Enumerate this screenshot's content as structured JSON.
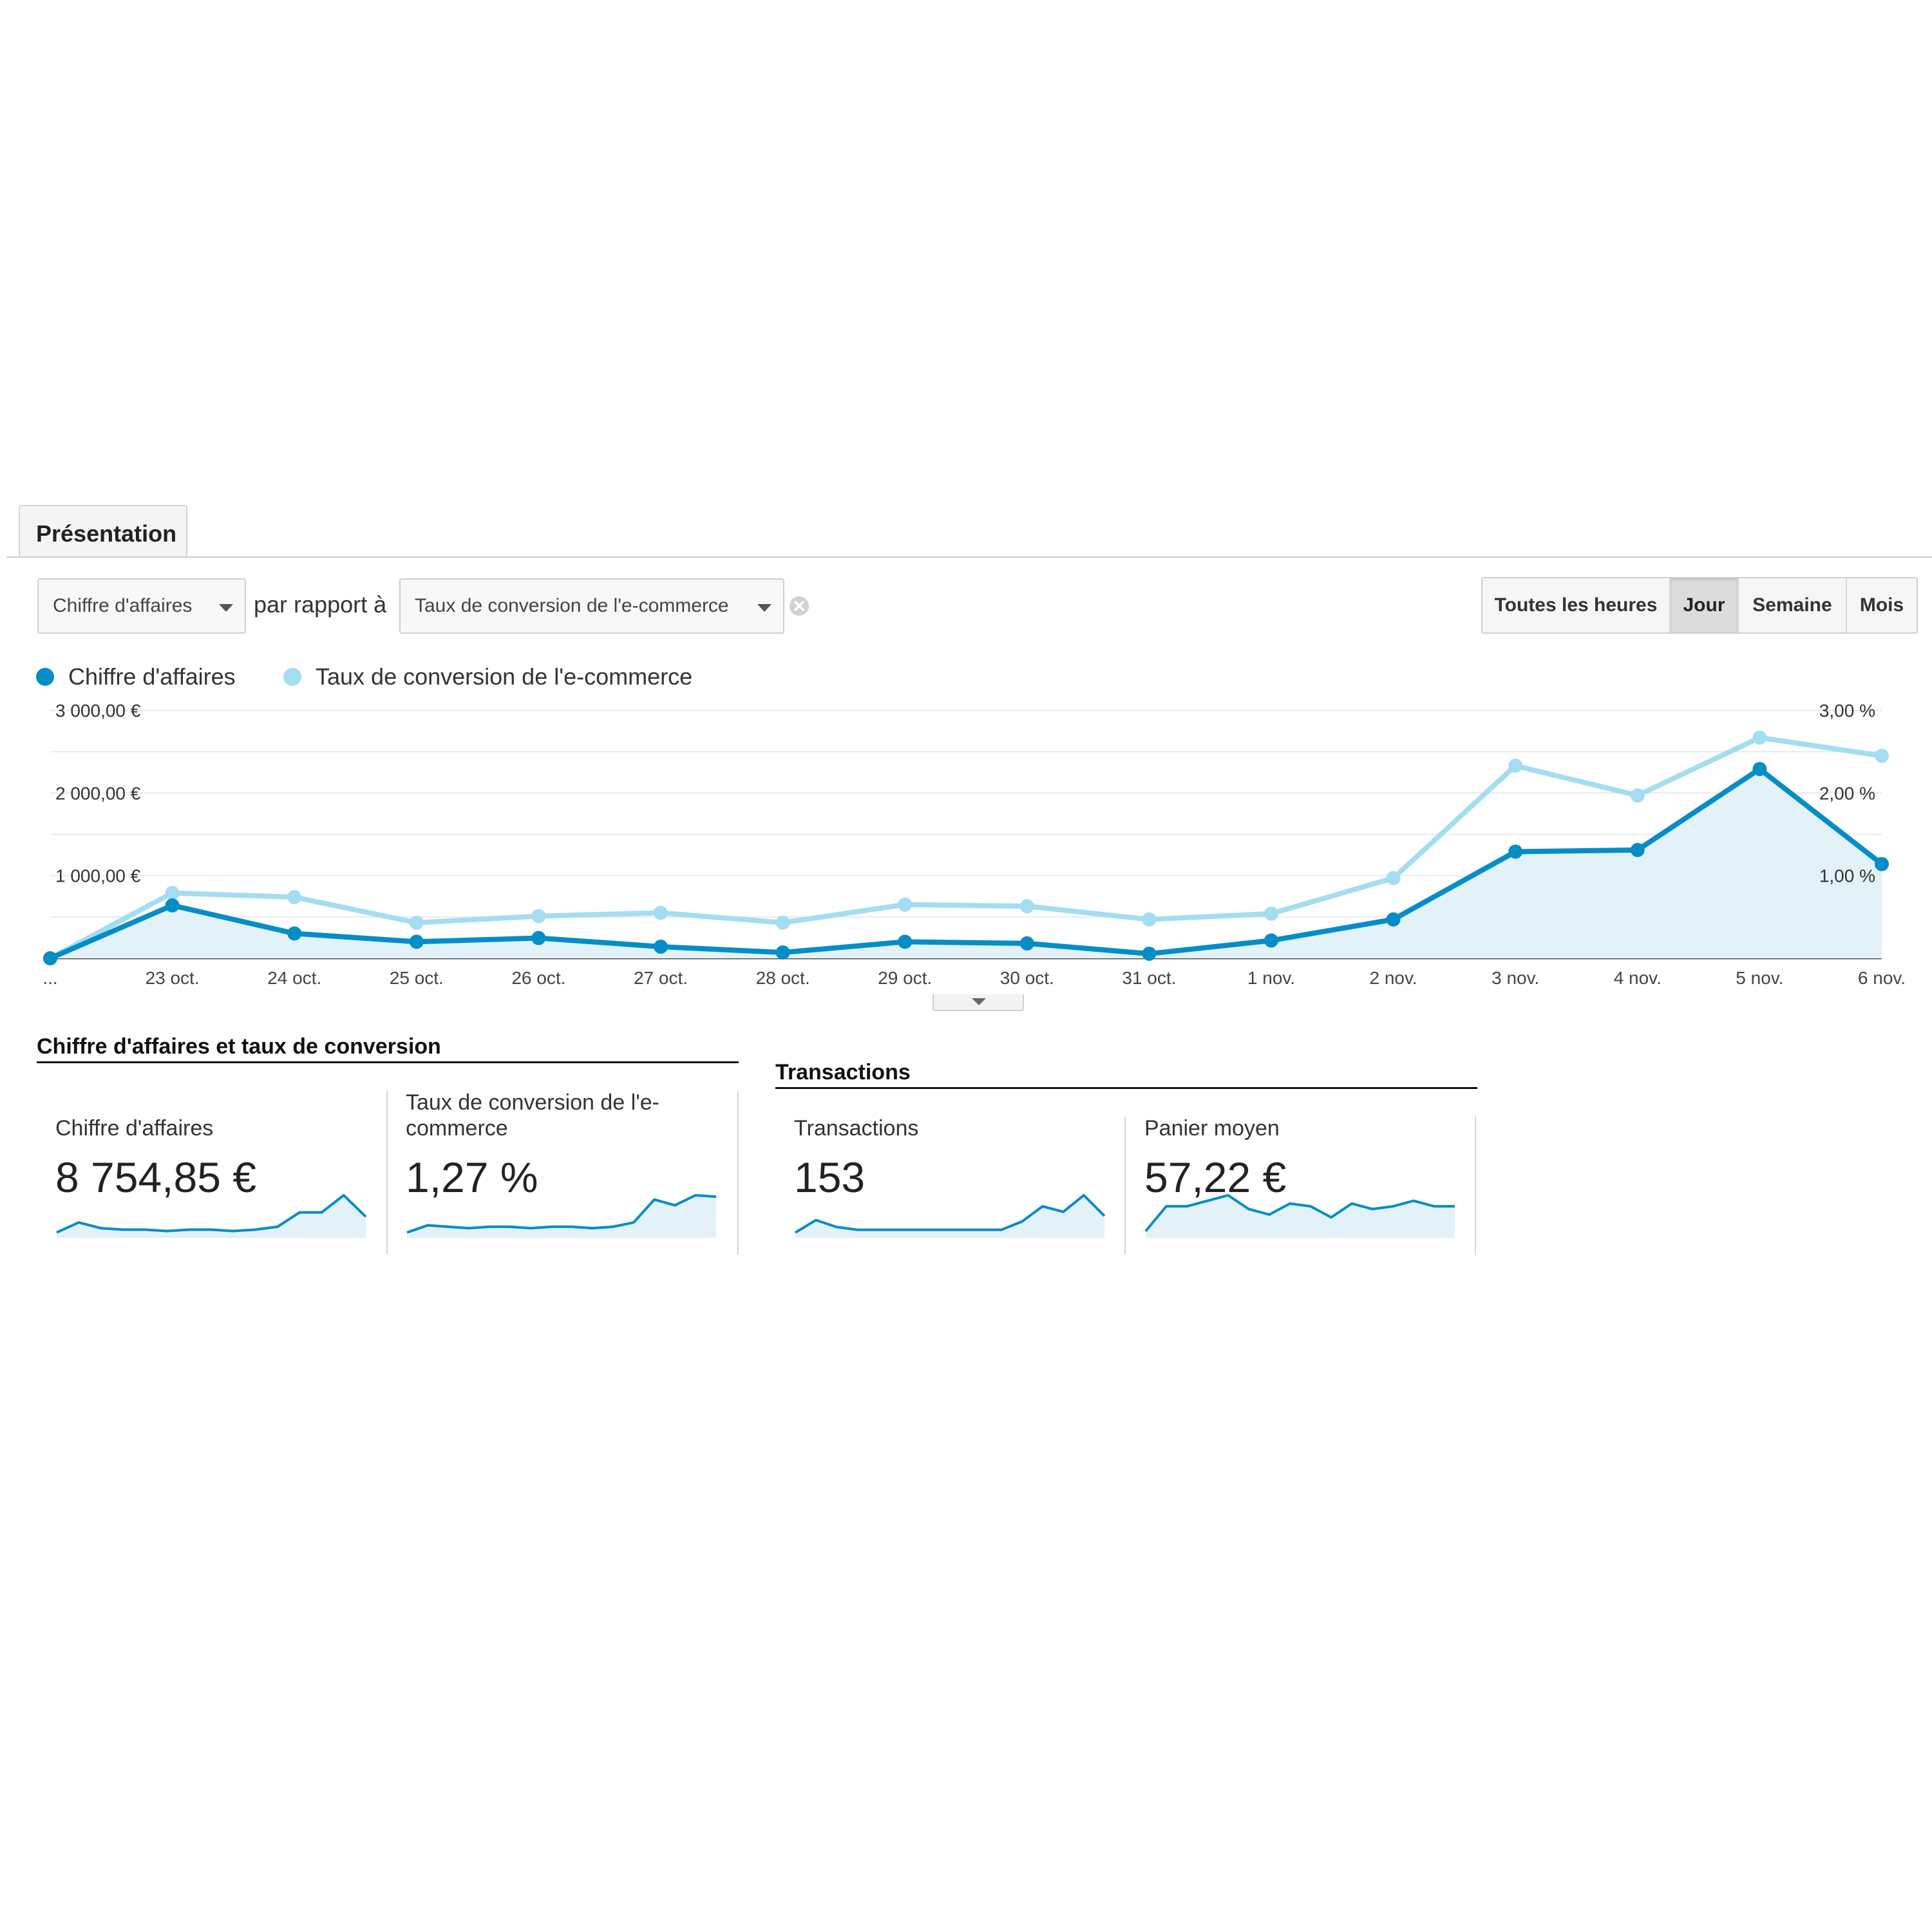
{
  "tabs": {
    "overview": "Présentation"
  },
  "controls": {
    "metric1": "Chiffre d'affaires",
    "versus": "par rapport à",
    "metric2": "Taux de conversion de l'e-commerce",
    "periods": [
      "Toutes les heures",
      "Jour",
      "Semaine",
      "Mois"
    ],
    "active_period": "Jour"
  },
  "colors": {
    "revenue": "#058dc7",
    "conversion": "#a4ddf2",
    "area": "#e3f1f8",
    "grid": "#ebebeb"
  },
  "chart_data": {
    "type": "line",
    "x": [
      "...",
      "23 oct.",
      "24 oct.",
      "25 oct.",
      "26 oct.",
      "27 oct.",
      "28 oct.",
      "29 oct.",
      "30 oct.",
      "31 oct.",
      "1 nov.",
      "2 nov.",
      "3 nov.",
      "4 nov.",
      "5 nov.",
      "6 nov."
    ],
    "series": [
      {
        "name": "Chiffre d'affaires",
        "axis": "left",
        "values": [
          0,
          640,
          300,
          200,
          245,
          140,
          70,
          200,
          180,
          55,
          215,
          470,
          1290,
          1310,
          2290,
          1140
        ]
      },
      {
        "name": "Taux de conversion de l'e-commerce",
        "axis": "right",
        "values": [
          0,
          0.79,
          0.74,
          0.43,
          0.51,
          0.55,
          0.43,
          0.65,
          0.63,
          0.47,
          0.54,
          0.97,
          2.33,
          1.97,
          2.67,
          2.45
        ]
      }
    ],
    "y_left": {
      "ticks": [
        "3 000,00 €",
        "2 000,00 €",
        "1 000,00 €"
      ],
      "range": [
        0,
        3000
      ]
    },
    "y_right": {
      "ticks": [
        "3,00 %",
        "2,00 %",
        "1,00 %"
      ],
      "range": [
        0,
        3
      ]
    },
    "grid": true,
    "legend_position": "top-left"
  },
  "groups": [
    {
      "title": "Chiffre d'affaires et taux de conversion",
      "metrics": [
        {
          "label": "Chiffre d'affaires",
          "value": "8 754,85 €",
          "spark": [
            1,
            8,
            4,
            3,
            3,
            2,
            3,
            3,
            2,
            3,
            5,
            15,
            15,
            27,
            12
          ]
        },
        {
          "label": "Taux de conversion de l'e-commerce",
          "value": "1,27 %",
          "spark": [
            1,
            6,
            5,
            4,
            5,
            5,
            4,
            5,
            5,
            4,
            5,
            8,
            24,
            20,
            27,
            26
          ]
        }
      ]
    },
    {
      "title": "Transactions",
      "metrics": [
        {
          "label": "Transactions",
          "value": "153",
          "spark": [
            1,
            10,
            5,
            3,
            3,
            3,
            3,
            3,
            3,
            3,
            3,
            9,
            20,
            16,
            28,
            13
          ]
        },
        {
          "label": "Panier moyen",
          "value": "57,22 €",
          "spark": [
            2,
            20,
            20,
            24,
            28,
            18,
            14,
            22,
            20,
            12,
            22,
            18,
            20,
            24,
            20,
            20
          ]
        }
      ]
    }
  ]
}
